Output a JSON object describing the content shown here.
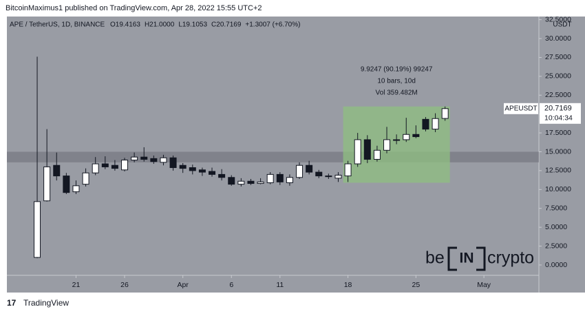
{
  "header": {
    "published": "BitcoinMaximus1 published on TradingView.com, Apr 28, 2022 15:55 UTC+2"
  },
  "chart_data": {
    "type": "candlestick",
    "title": "APE / TetherUS, 1D, BINANCE",
    "ohlc_text": [
      "O19.4163",
      "H21.0000",
      "L19.1053",
      "C20.7169",
      "+1.3007 (+6.70%)"
    ],
    "currency": "USDT",
    "open": [
      1.0,
      8.5,
      13.2,
      11.8,
      9.7,
      10.7,
      12.2,
      13.4,
      13.2,
      12.6,
      13.9,
      14.3,
      14.1,
      13.6,
      14.2,
      13.2,
      12.9,
      12.6,
      12.4,
      12.0,
      11.6,
      10.7,
      11.1,
      10.8,
      10.9,
      12.0,
      10.9,
      11.6,
      13.2,
      12.3,
      11.8,
      11.5,
      11.8,
      13.4,
      16.6,
      14.0,
      15.2,
      16.6,
      16.6,
      17.3,
      19.3,
      18.0,
      19.4163
    ],
    "high": [
      27.6,
      18.0,
      14.9,
      12.2,
      11.2,
      12.8,
      14.3,
      14.4,
      13.9,
      14.2,
      14.9,
      15.6,
      14.5,
      14.6,
      14.5,
      13.5,
      13.3,
      12.9,
      12.9,
      12.7,
      11.9,
      11.5,
      11.4,
      11.5,
      12.3,
      12.3,
      12.0,
      13.6,
      13.8,
      12.6,
      12.1,
      12.3,
      13.8,
      17.5,
      17.2,
      15.8,
      18.3,
      17.3,
      19.5,
      18.5,
      19.6,
      20.1,
      21.0
    ],
    "low": [
      0.9,
      8.4,
      11.2,
      9.4,
      9.4,
      10.4,
      11.9,
      12.7,
      12.5,
      12.4,
      13.6,
      13.7,
      13.4,
      13.2,
      12.5,
      12.2,
      12.0,
      11.8,
      11.7,
      11.2,
      10.5,
      10.4,
      10.6,
      10.7,
      10.7,
      10.6,
      10.5,
      11.4,
      12.0,
      11.5,
      11.4,
      11.0,
      11.0,
      13.0,
      13.5,
      13.7,
      14.8,
      16.0,
      16.3,
      16.8,
      17.7,
      17.6,
      19.1053
    ],
    "close": [
      8.4,
      13.0,
      11.8,
      9.6,
      10.5,
      12.2,
      13.4,
      13.0,
      12.8,
      13.9,
      14.3,
      14.0,
      13.7,
      14.2,
      12.9,
      12.8,
      12.5,
      12.3,
      12.0,
      11.6,
      10.7,
      11.1,
      10.8,
      11.0,
      12.0,
      11.0,
      11.6,
      13.2,
      12.3,
      11.8,
      11.7,
      11.9,
      13.4,
      16.6,
      14.0,
      15.2,
      16.6,
      16.5,
      17.3,
      17.0,
      18.0,
      19.4,
      20.7169
    ],
    "up_color": "#ffffff",
    "down_color": "#131722",
    "border_color": "#131722",
    "xlim": [
      -3.12,
      51.66
    ],
    "xticks": [
      {
        "value": 4,
        "label": "21"
      },
      {
        "value": 9,
        "label": "26"
      },
      {
        "value": 15,
        "label": "Apr"
      },
      {
        "value": 20,
        "label": "6"
      },
      {
        "value": 25,
        "label": "11"
      },
      {
        "value": 32,
        "label": "18"
      },
      {
        "value": 39,
        "label": "25"
      },
      {
        "value": 46,
        "label": "May"
      }
    ],
    "ylim": [
      -1.37,
      32.92
    ],
    "yticks": [
      {
        "value": 0,
        "label": "0.0000"
      },
      {
        "value": 2.5,
        "label": "2.5000"
      },
      {
        "value": 5,
        "label": "5.0000"
      },
      {
        "value": 7.5,
        "label": "7.5000"
      },
      {
        "value": 10,
        "label": "10.0000"
      },
      {
        "value": 12.5,
        "label": "12.5000"
      },
      {
        "value": 15,
        "label": "15.0000"
      },
      {
        "value": 17.5,
        "label": "17.5000"
      },
      {
        "value": 20,
        "label": "20.0000"
      },
      {
        "value": 22.5,
        "label": "22.5000"
      },
      {
        "value": 25,
        "label": "25.0000"
      },
      {
        "value": 27.5,
        "label": "27.5000"
      },
      {
        "value": 30,
        "label": "30.0000"
      },
      {
        "value": 32.5,
        "label": "32.5000"
      }
    ],
    "support_zone": [
      13.6,
      15.0
    ],
    "range_box": {
      "x": [
        32,
        42
      ],
      "y": [
        10.9,
        21.0
      ],
      "color": "#8fbf80",
      "lines": [
        "9.9247 (90.19%) 99247",
        "10 bars, 10d",
        "Vol 359.482M"
      ]
    },
    "last_price": {
      "symbol": "APEUSDT",
      "value": 20.7169,
      "label": "20.7169",
      "countdown": "10:04:34"
    },
    "watermark": [
      "be",
      "IN",
      "crypto"
    ]
  },
  "footer": {
    "brand": "TradingView"
  }
}
